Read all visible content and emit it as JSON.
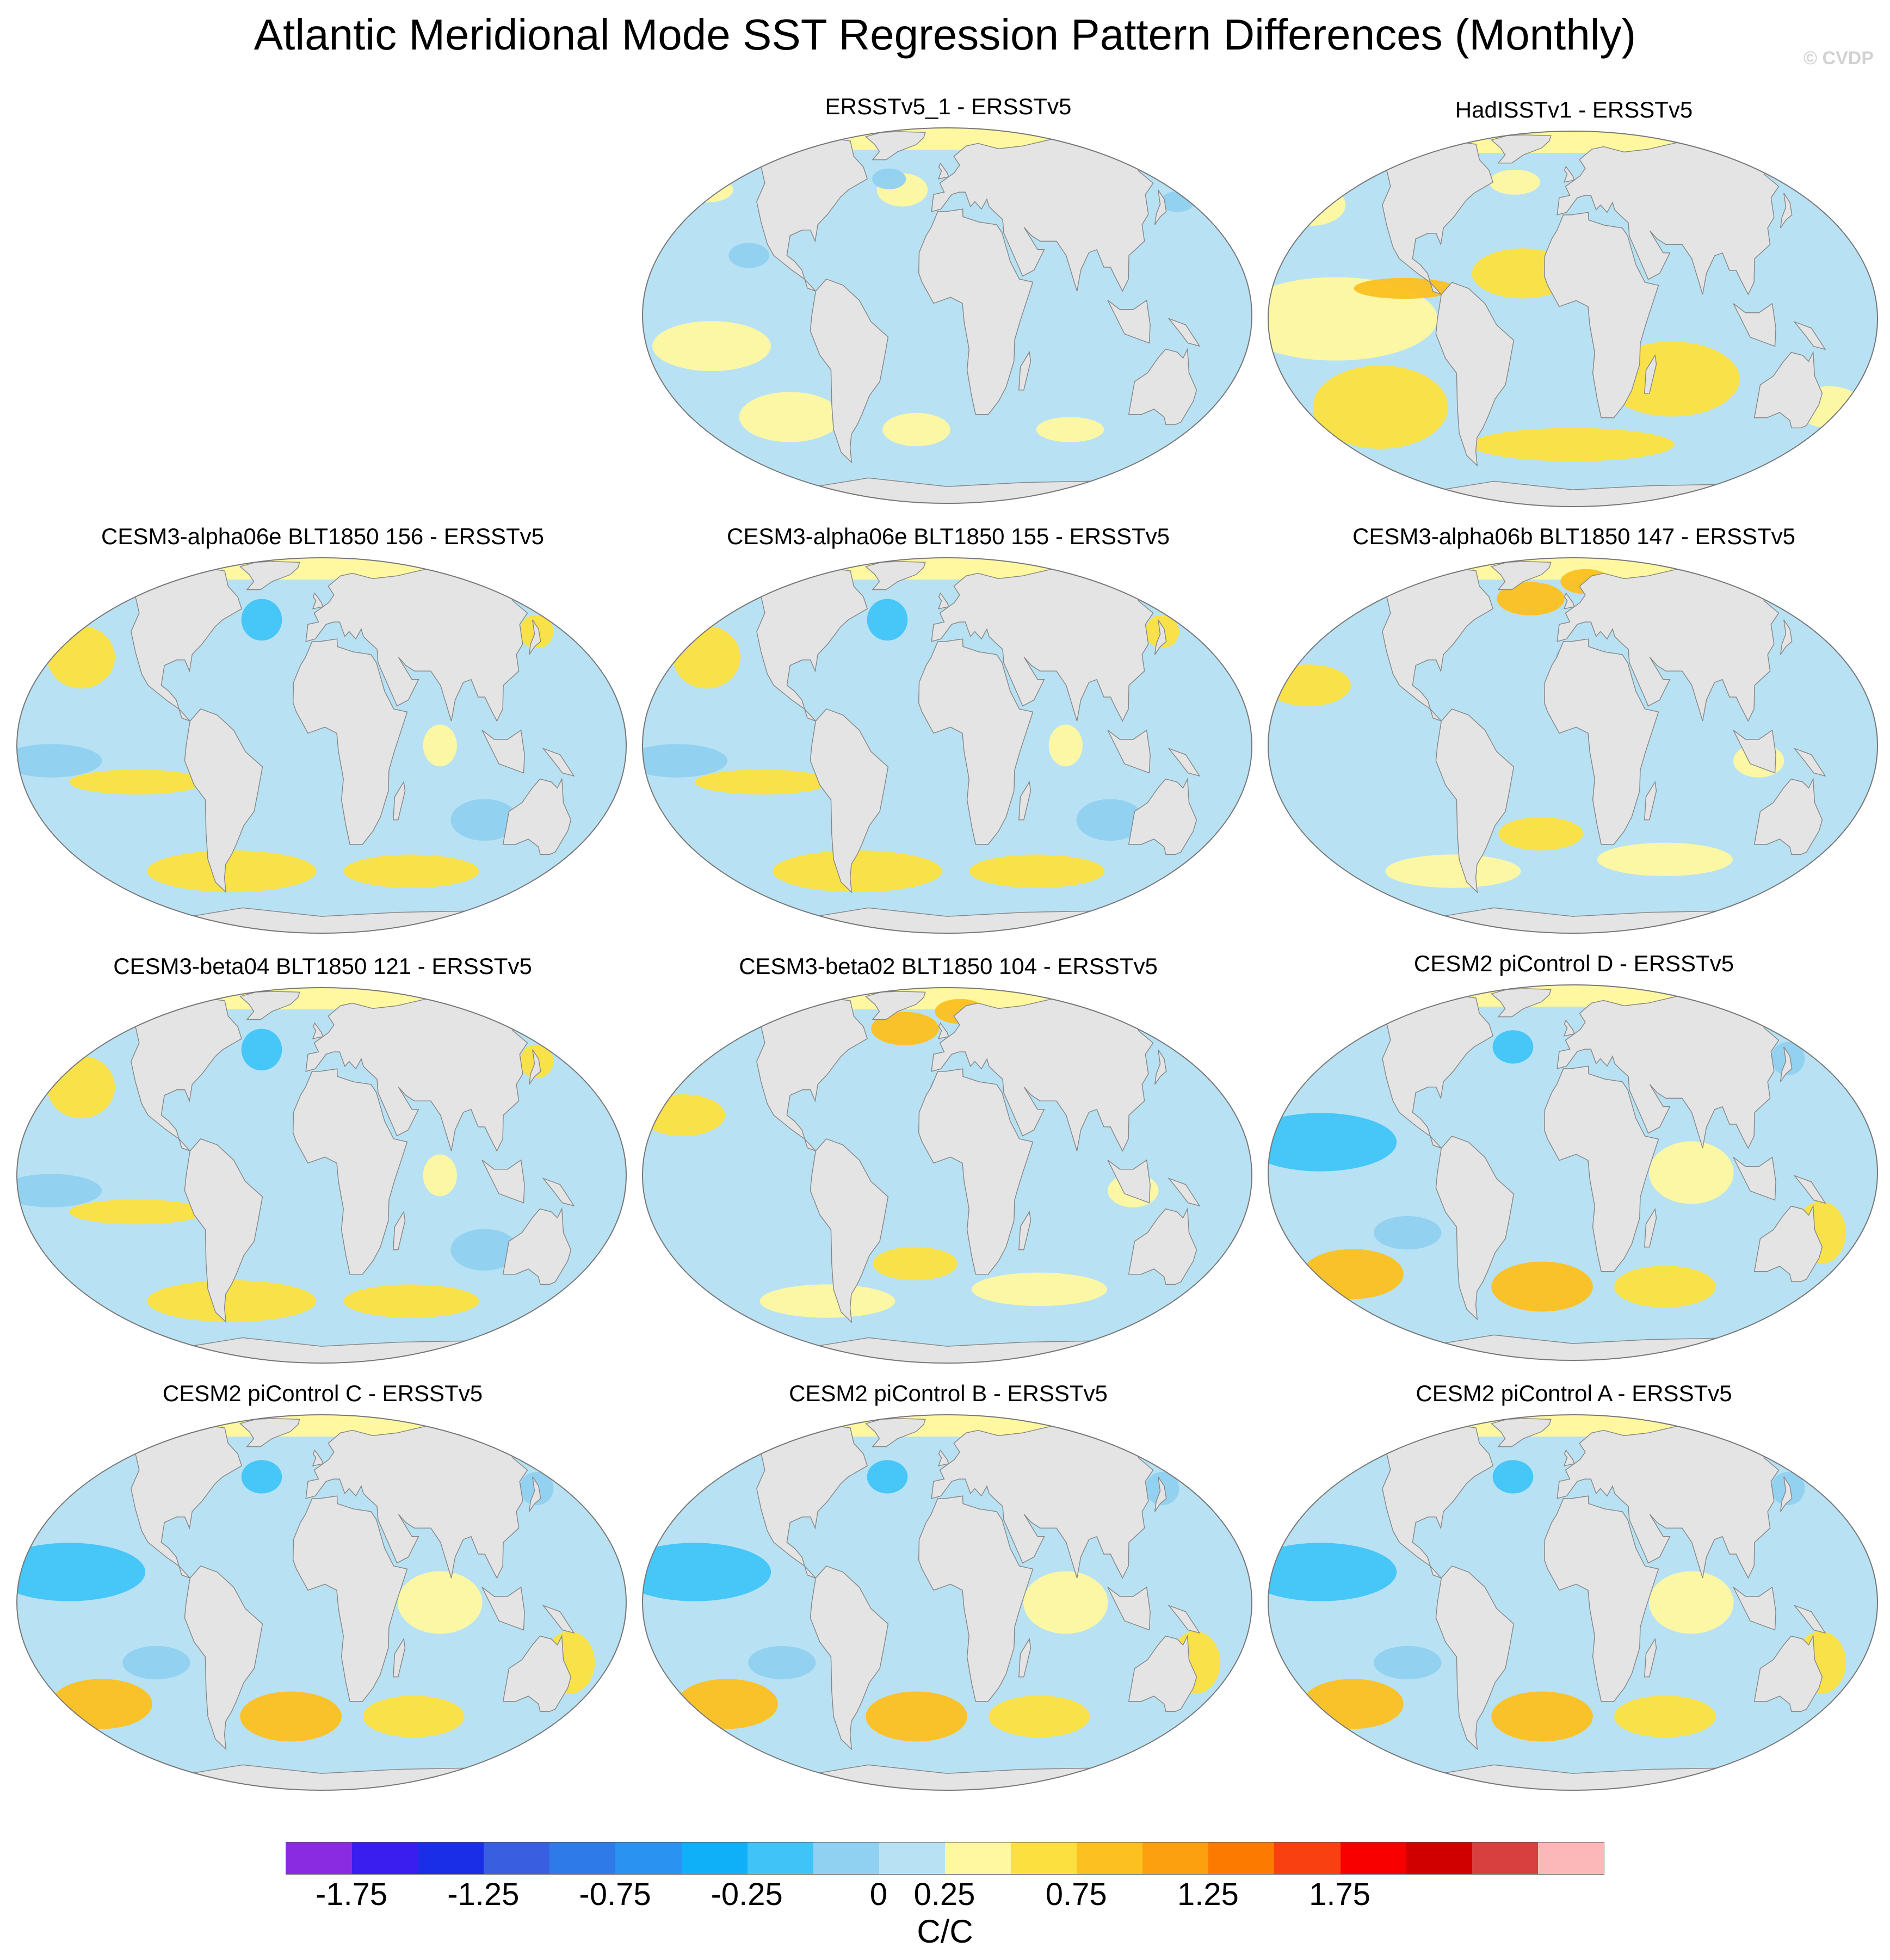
{
  "title": "Atlantic Meridional Mode SST Regression Pattern Differences (Monthly)",
  "copyright": "© CVDP",
  "panels": [
    {
      "id": "p1",
      "label": "ERSSTv5_1 - ERSSTv5",
      "pattern": "obs_small"
    },
    {
      "id": "p2",
      "label": "HadISSTv1 - ERSSTv5",
      "pattern": "warm"
    },
    {
      "id": "p3",
      "label": "CESM3-alpha06e BLT1850 156 - ERSSTv5",
      "pattern": "mixed"
    },
    {
      "id": "p4",
      "label": "CESM3-alpha06e BLT1850 155 - ERSSTv5",
      "pattern": "mixed"
    },
    {
      "id": "p5",
      "label": "CESM3-alpha06b BLT1850 147 - ERSSTv5",
      "pattern": "mixed_warm"
    },
    {
      "id": "p6",
      "label": "CESM3-beta04 BLT1850 121 - ERSSTv5",
      "pattern": "mixed"
    },
    {
      "id": "p7",
      "label": "CESM3-beta02 BLT1850 104 - ERSSTv5",
      "pattern": "mixed_warm"
    },
    {
      "id": "p8",
      "label": "CESM2 piControl D - ERSSTv5",
      "pattern": "cool_pacific"
    },
    {
      "id": "p9",
      "label": "CESM2 piControl C - ERSSTv5",
      "pattern": "cool_pacific"
    },
    {
      "id": "p10",
      "label": "CESM2 piControl B - ERSSTv5",
      "pattern": "cool_pacific"
    },
    {
      "id": "p11",
      "label": "CESM2 piControl A - ERSSTv5",
      "pattern": "cool_pacific"
    }
  ],
  "colorbar": {
    "colors": [
      "#8a2be2",
      "#3a1ef0",
      "#1a2ee8",
      "#3a5ee0",
      "#2e7ae8",
      "#2a92f0",
      "#10b0f8",
      "#40c4f8",
      "#90d0f0",
      "#b8e2f4",
      "#fff8a0",
      "#fce040",
      "#fcc020",
      "#fca010",
      "#fc7a00",
      "#f84010",
      "#f80000",
      "#d00000",
      "#d84040",
      "#fcb8b8"
    ],
    "ticks": [
      "-1.75",
      "-1.25",
      "-0.75",
      "-0.25",
      "0",
      "0.25",
      "0.75",
      "1.25",
      "1.75"
    ],
    "tick_after_segment": [
      1,
      3,
      5,
      7,
      9,
      10,
      12,
      14,
      16
    ],
    "units": "C/C"
  },
  "map_colors": {
    "ocean_cool": "#b8e2f4",
    "ocean_cooler": "#90d0f0",
    "ocean_cold": "#40c4f8",
    "ocean_warm": "#fff8a0",
    "ocean_warmer": "#fce040",
    "ocean_hot": "#fcc020",
    "land": "#e4e4e4",
    "coast": "#888888"
  }
}
